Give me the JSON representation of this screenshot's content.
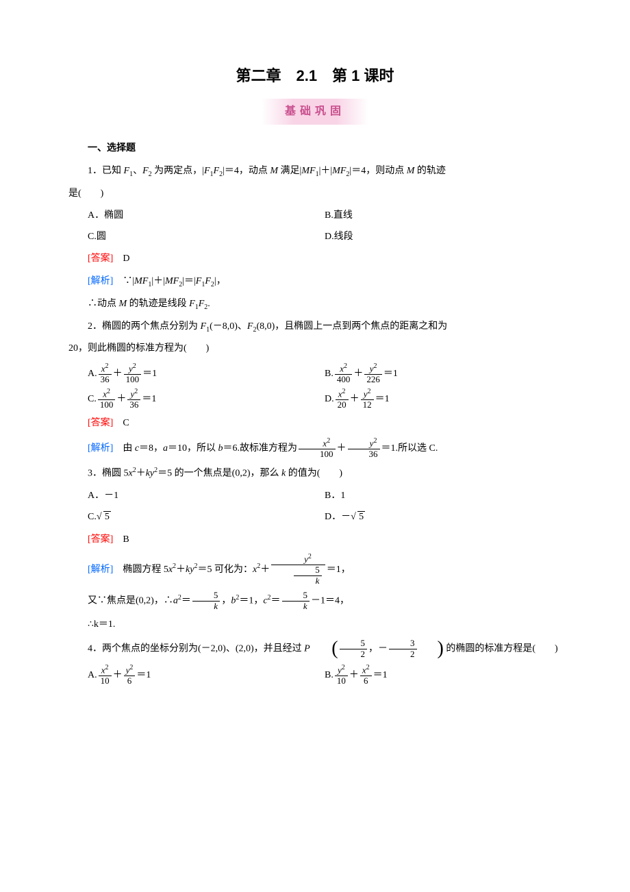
{
  "title": "第二章　2.1　第 1 课时",
  "banner": "基础巩固",
  "section1": "一、选择题",
  "ans_label": "[答案]",
  "ana_label": "[解析]",
  "q1": {
    "stem_a": "1．已知 ",
    "stem_b": "、",
    "stem_c": " 为两定点，|",
    "stem_d": "|＝4，动点 ",
    "stem_e": " 满足|",
    "stem_f": "|＋|",
    "stem_g": "|＝4，则动点 ",
    "stem_h": " 的轨迹",
    "stem_tail": "是(　　)",
    "optA": "A．椭圆",
    "optB": "B.直线",
    "optC": "C.圆",
    "optD": "D.线段",
    "answer": "D",
    "ana_a": "∵|",
    "ana_b": "|＋|",
    "ana_c": "|＝|",
    "ana_d": "|，",
    "ana2_a": "∴动点 ",
    "ana2_b": " 的轨迹是线段 ",
    "ana2_c": "."
  },
  "q2": {
    "stem_a": "2．椭圆的两个焦点分别为 ",
    "stem_b": "(－8,0)、",
    "stem_c": "(8,0)，且椭圆上一点到两个焦点的距离之和为",
    "stem_tail": "20，则此椭圆的标准方程为(　　)",
    "A": {
      "n1": "x",
      "d1": "36",
      "n2": "y",
      "d2": "100"
    },
    "B": {
      "n1": "x",
      "d1": "400",
      "n2": "y",
      "d2": "226"
    },
    "C": {
      "n1": "x",
      "d1": "100",
      "n2": "y",
      "d2": "36"
    },
    "D": {
      "n1": "x",
      "d1": "20",
      "n2": "y",
      "d2": "12"
    },
    "answer": "C",
    "ana_a": "由 ",
    "ana_b": "＝8，",
    "ana_c": "＝10，所以 ",
    "ana_d": "＝6.故标准方程为",
    "ana_e": "＝1.所以选 C.",
    "ana_frac": {
      "d1": "100",
      "d2": "36"
    }
  },
  "q3": {
    "stem_a": "3．椭圆 5",
    "stem_b": "＋",
    "stem_c": "＝5 的一个焦点是(0,2)，那么 ",
    "stem_d": " 的值为(　　)",
    "optA": "A．－1",
    "optB": "B．1",
    "optC_pre": "C.",
    "optC_rad": "5",
    "optD_pre": "D．－",
    "optD_rad": "5",
    "answer": "B",
    "ana_a": "椭圆方程 5",
    "ana_b": "＋",
    "ana_c": "＝5 可化为：",
    "ana_d": "＋",
    "ana_e": "＝1，",
    "ana_den_num": "5",
    "ana_den_den": "k",
    "ana2_a": "又∵焦点是(0,2)，∴",
    "ana2_b": "＝",
    "ana2_c": "，",
    "ana2_d": "＝1，",
    "ana2_e": "＝",
    "ana2_f": "－1＝4，",
    "ana3": "∴k＝1."
  },
  "q4": {
    "stem_a": "4．两个焦点的坐标分别为(－2,0)、(2,0)，并且经过 ",
    "stem_b": " 的椭圆的标准方程是(　　)",
    "P_num1": "5",
    "P_den1": "2",
    "P_num2": "3",
    "P_den2": "2",
    "A": {
      "n1": "x",
      "d1": "10",
      "n2": "y",
      "d2": "6"
    },
    "B": {
      "n1": "y",
      "d1": "10",
      "n2": "x",
      "d2": "6"
    }
  }
}
